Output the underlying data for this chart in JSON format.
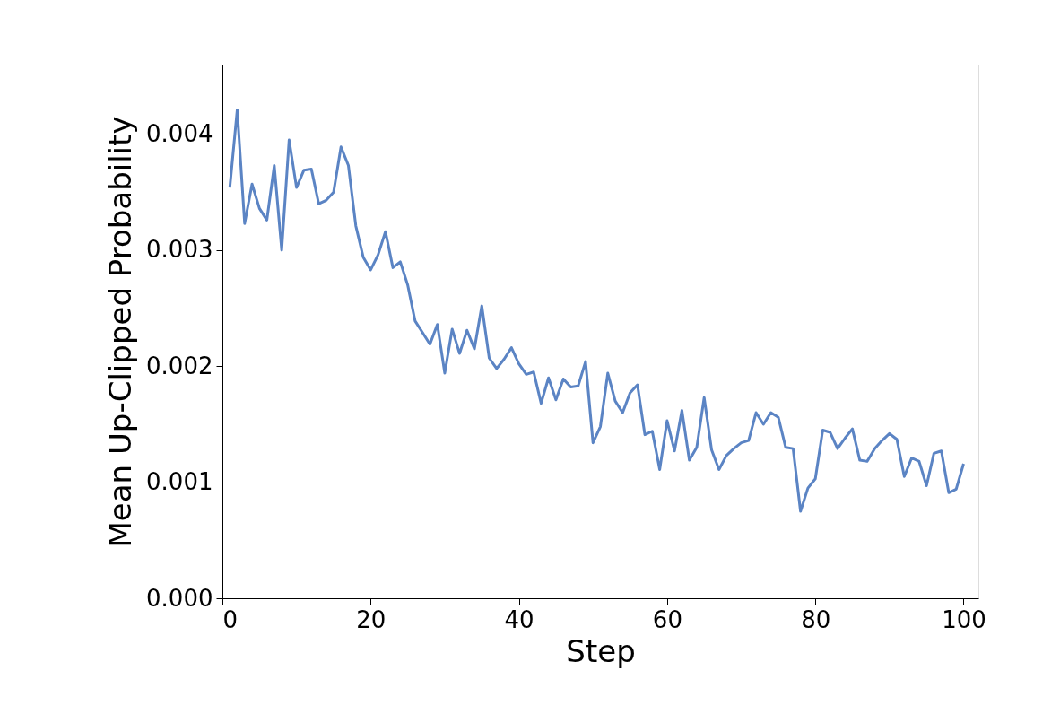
{
  "chart_data": {
    "type": "line",
    "xlabel": "Step",
    "ylabel": "Mean Up-Clipped Probability",
    "x": [
      1,
      2,
      3,
      4,
      5,
      6,
      7,
      8,
      9,
      10,
      11,
      12,
      13,
      14,
      15,
      16,
      17,
      18,
      19,
      20,
      21,
      22,
      23,
      24,
      25,
      26,
      27,
      28,
      29,
      30,
      31,
      32,
      33,
      34,
      35,
      36,
      37,
      38,
      39,
      40,
      41,
      42,
      43,
      44,
      45,
      46,
      47,
      48,
      49,
      50,
      51,
      52,
      53,
      54,
      55,
      56,
      57,
      58,
      59,
      60,
      61,
      62,
      63,
      64,
      65,
      66,
      67,
      68,
      69,
      70,
      71,
      72,
      73,
      74,
      75,
      76,
      77,
      78,
      79,
      80,
      81,
      82,
      83,
      84,
      85,
      86,
      87,
      88,
      89,
      90,
      91,
      92,
      93,
      94,
      95,
      96,
      97,
      98,
      99,
      100
    ],
    "series": [
      {
        "color": "#5b84c4",
        "values": [
          0.00354,
          0.00421,
          0.00323,
          0.00357,
          0.00336,
          0.00326,
          0.00373,
          0.003,
          0.00395,
          0.00354,
          0.00369,
          0.0037,
          0.0034,
          0.00343,
          0.0035,
          0.00389,
          0.00373,
          0.00321,
          0.00294,
          0.00283,
          0.00296,
          0.00316,
          0.00285,
          0.0029,
          0.0027,
          0.00239,
          0.00229,
          0.00219,
          0.00236,
          0.00194,
          0.00232,
          0.00211,
          0.00231,
          0.00215,
          0.00252,
          0.00207,
          0.00198,
          0.00206,
          0.00216,
          0.00202,
          0.00193,
          0.00195,
          0.00168,
          0.0019,
          0.00171,
          0.00189,
          0.00182,
          0.00183,
          0.00204,
          0.00134,
          0.00148,
          0.00194,
          0.0017,
          0.0016,
          0.00177,
          0.00184,
          0.00141,
          0.00144,
          0.00111,
          0.00153,
          0.00127,
          0.00162,
          0.00119,
          0.0013,
          0.00173,
          0.00128,
          0.00111,
          0.00123,
          0.00129,
          0.00134,
          0.00136,
          0.0016,
          0.0015,
          0.0016,
          0.00156,
          0.0013,
          0.00129,
          0.00075,
          0.00095,
          0.00103,
          0.00145,
          0.00143,
          0.00129,
          0.00138,
          0.00146,
          0.00119,
          0.00118,
          0.00129,
          0.00136,
          0.00142,
          0.00137,
          0.00105,
          0.00121,
          0.00118,
          0.00097,
          0.00125,
          0.00127,
          0.00091,
          0.00094,
          0.00116
        ]
      }
    ],
    "xlim": [
      0,
      102
    ],
    "ylim": [
      0,
      0.0046
    ],
    "xticks": [
      0,
      20,
      40,
      60,
      80,
      100
    ],
    "yticks": [
      {
        "value": 0,
        "label": "0.000"
      },
      {
        "value": 0.001,
        "label": "0.001"
      },
      {
        "value": 0.002,
        "label": "0.002"
      },
      {
        "value": 0.003,
        "label": "0.003"
      },
      {
        "value": 0.004,
        "label": "0.004"
      }
    ],
    "grid": false,
    "marker": "none",
    "line_style": "solid"
  }
}
